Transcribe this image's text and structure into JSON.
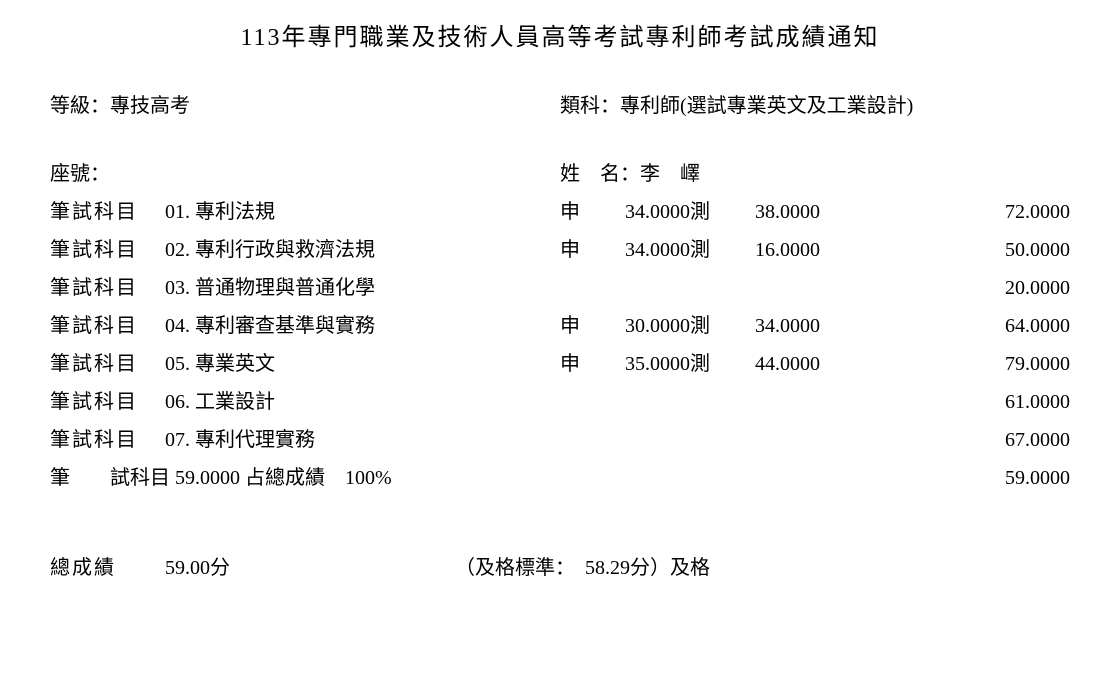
{
  "title": "113年專門職業及技術人員高等考試專利師考試成績通知",
  "level_label": "等級：專技高考",
  "category_label": "類科：專利師(選試專業英文及工業設計)",
  "seat_label": "座號：",
  "name_label": "姓　名：李　嶧",
  "subject_label": "筆試科目",
  "subjects": [
    {
      "code": "01.",
      "name": "專利法規",
      "shen": "申",
      "s1": "34.0000",
      "ce": "測",
      "s2": "38.0000",
      "total": "72.0000"
    },
    {
      "code": "02.",
      "name": "專利行政與救濟法規",
      "shen": "申",
      "s1": "34.0000",
      "ce": "測",
      "s2": "16.0000",
      "total": "50.0000"
    },
    {
      "code": "03.",
      "name": "普通物理與普通化學",
      "shen": "",
      "s1": "",
      "ce": "",
      "s2": "",
      "total": "20.0000"
    },
    {
      "code": "04.",
      "name": "專利審查基準與實務",
      "shen": "申",
      "s1": "30.0000",
      "ce": "測",
      "s2": "34.0000",
      "total": "64.0000"
    },
    {
      "code": "05.",
      "name": "專業英文",
      "shen": "申",
      "s1": "35.0000",
      "ce": "測",
      "s2": "44.0000",
      "total": "79.0000"
    },
    {
      "code": "06.",
      "name": "工業設計",
      "shen": "",
      "s1": "",
      "ce": "",
      "s2": "",
      "total": "61.0000"
    },
    {
      "code": "07.",
      "name": "專利代理實務",
      "shen": "",
      "s1": "",
      "ce": "",
      "s2": "",
      "total": "67.0000"
    }
  ],
  "written_summary_left": "筆　　試科目 59.0000 占總成績　100%",
  "written_summary_total": "59.0000",
  "final_label": "總成績",
  "final_score": "59.00分",
  "pass_info": "（及格標準：　58.29分）及格"
}
